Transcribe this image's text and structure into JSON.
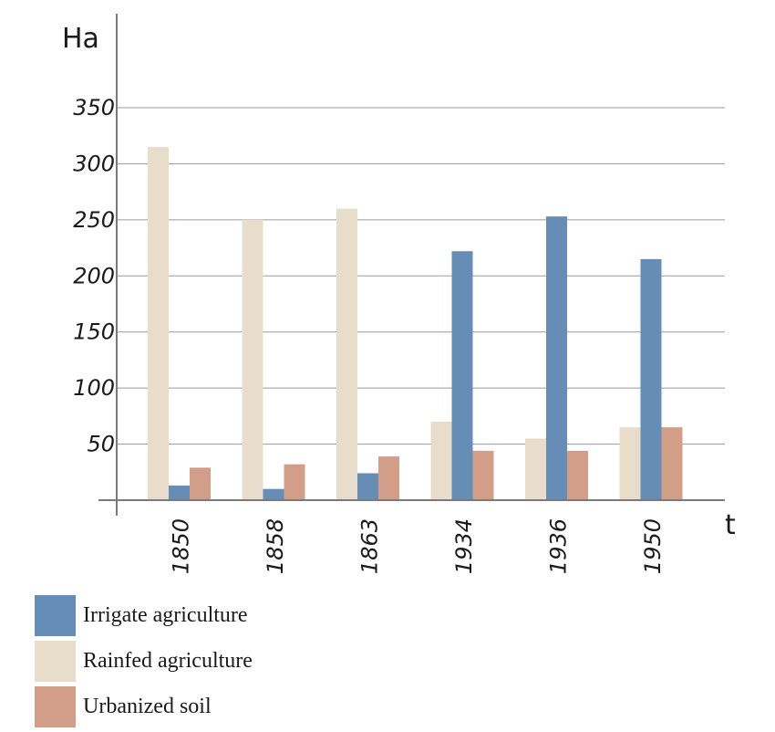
{
  "chart_data": {
    "type": "bar",
    "ylabel": "Ha",
    "xlabel": "t",
    "ylim": [
      0,
      350
    ],
    "yticks": [
      "50",
      "100",
      "150",
      "200",
      "250",
      "300",
      "350"
    ],
    "categories": [
      "1850",
      "1858",
      "1863",
      "1934",
      "1936",
      "1950"
    ],
    "series": [
      {
        "name": "Rainfed agriculture",
        "color": "#e8dccb",
        "values": [
          315,
          250,
          260,
          70,
          55,
          65
        ]
      },
      {
        "name": "Irrigate agriculture",
        "color": "#658db5",
        "values": [
          13,
          10,
          24,
          222,
          253,
          215
        ]
      },
      {
        "name": "Urbanized soil",
        "color": "#d39e88",
        "values": [
          29,
          32,
          39,
          44,
          44,
          65
        ]
      }
    ],
    "grid": true,
    "legend_position": "bottom-left"
  },
  "legend": [
    {
      "label": "Irrigate agriculture",
      "color": "#658db5"
    },
    {
      "label": "Rainfed agriculture",
      "color": "#e8dccb"
    },
    {
      "label": "Urbanized soil",
      "color": "#d39e88"
    }
  ]
}
